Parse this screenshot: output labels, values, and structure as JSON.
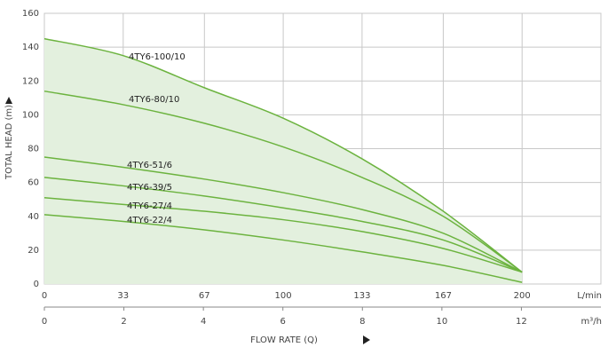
{
  "chart_data": {
    "type": "line",
    "xlabel": "FLOW RATE (Q)",
    "ylabel": "TOTAL HEAD (m)",
    "x_unit": "L/min",
    "x2_unit": "m³/h",
    "x": [
      0,
      33,
      67,
      100,
      133,
      167,
      200
    ],
    "xlim": [
      0,
      233
    ],
    "xticks": [
      0,
      33,
      67,
      100,
      133,
      167,
      200
    ],
    "x2lim": [
      0,
      14
    ],
    "x2ticks": [
      0,
      2,
      4,
      6,
      8,
      10,
      12
    ],
    "ylim": [
      0,
      160
    ],
    "yticks": [
      0,
      20,
      40,
      60,
      80,
      100,
      120,
      140,
      160
    ],
    "grid": true,
    "fill_color": "#e3f0de",
    "series": [
      {
        "name": "4TY6-100/10",
        "color": "#6cb33f",
        "values": [
          145,
          135,
          116,
          98,
          74,
          43,
          7
        ]
      },
      {
        "name": "4TY6-80/10",
        "color": "#6cb33f",
        "values": [
          114,
          106,
          95,
          81,
          63,
          40,
          7
        ]
      },
      {
        "name": "4TY6-51/6",
        "color": "#6cb33f",
        "values": [
          75,
          69,
          62,
          54,
          44,
          30,
          7
        ]
      },
      {
        "name": "4TY6-39/5",
        "color": "#6cb33f",
        "values": [
          63,
          58,
          52,
          45,
          37,
          26,
          7
        ]
      },
      {
        "name": "4TY6-27/4",
        "color": "#6cb33f",
        "values": [
          51,
          47,
          43,
          38,
          31,
          21,
          7
        ]
      },
      {
        "name": "4TY6-22/4",
        "color": "#6cb33f",
        "values": [
          41,
          37,
          32,
          26,
          19,
          11,
          1
        ]
      }
    ]
  }
}
